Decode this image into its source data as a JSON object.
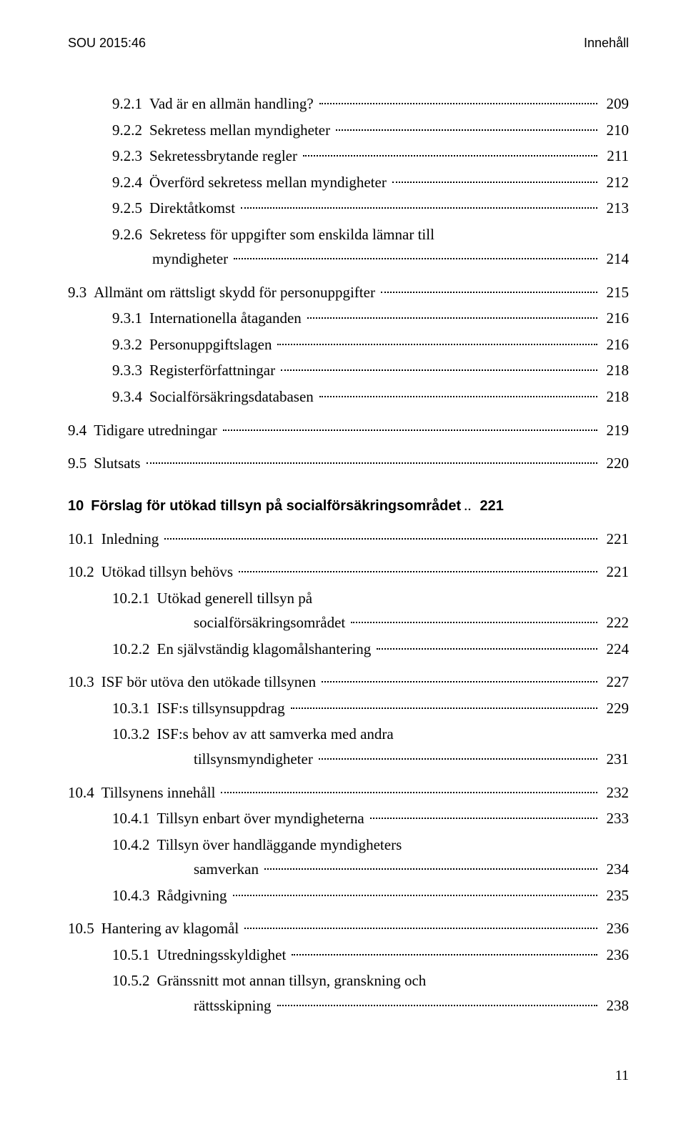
{
  "header": {
    "left": "SOU 2015:46",
    "right": "Innehåll"
  },
  "footer_page": "11",
  "toc": [
    {
      "key": "r0",
      "lvl": "lvl-2",
      "num": "9.2.1",
      "label": "Vad är en allmän handling?",
      "page": "209"
    },
    {
      "key": "r1",
      "lvl": "lvl-2",
      "num": "9.2.2",
      "label": "Sekretess mellan myndigheter",
      "page": "210"
    },
    {
      "key": "r2",
      "lvl": "lvl-2",
      "num": "9.2.3",
      "label": "Sekretessbrytande regler",
      "page": "211"
    },
    {
      "key": "r3",
      "lvl": "lvl-2",
      "num": "9.2.4",
      "label": "Överförd sekretess mellan myndigheter",
      "page": "212"
    },
    {
      "key": "r4",
      "lvl": "lvl-2",
      "num": "9.2.5",
      "label": "Direktåtkomst",
      "page": "213"
    },
    {
      "key": "r5",
      "lvl": "lvl-2",
      "num": "9.2.6",
      "label": "Sekretess för uppgifter som enskilda lämnar till",
      "cont": true
    },
    {
      "key": "r5b",
      "lvl": "cont-2",
      "label": "myndigheter",
      "page": "214",
      "wrap": true
    },
    {
      "key": "r6",
      "lvl": "lvl-1",
      "gap": "group-gap",
      "num": "9.3",
      "label": "Allmänt om rättsligt skydd för personuppgifter",
      "page": "215"
    },
    {
      "key": "r7",
      "lvl": "lvl-2",
      "num": "9.3.1",
      "label": "Internationella åtaganden",
      "page": "216"
    },
    {
      "key": "r8",
      "lvl": "lvl-2",
      "num": "9.3.2",
      "label": "Personuppgiftslagen",
      "page": "216"
    },
    {
      "key": "r9",
      "lvl": "lvl-2",
      "num": "9.3.3",
      "label": "Registerförfattningar",
      "page": "218"
    },
    {
      "key": "r10",
      "lvl": "lvl-2",
      "num": "9.3.4",
      "label": "Socialförsäkringsdatabasen",
      "page": "218"
    },
    {
      "key": "r11",
      "lvl": "lvl-1",
      "gap": "group-gap",
      "num": "9.4",
      "label": "Tidigare utredningar",
      "page": "219"
    },
    {
      "key": "r12",
      "lvl": "lvl-1",
      "gap": "group-gap",
      "num": "9.5",
      "label": "Slutsats",
      "page": "220"
    },
    {
      "key": "r13",
      "lvl": "lvl-1",
      "gap": "section-gap",
      "bold": true,
      "num": "10",
      "label": "Förslag för utökad tillsyn på socialförsäkringsområdet",
      "page": "221",
      "nodots": true,
      "sep": ".."
    },
    {
      "key": "r14",
      "lvl": "lvl-1",
      "gap": "group-gap",
      "num": "10.1",
      "label": "Inledning",
      "page": "221"
    },
    {
      "key": "r15",
      "lvl": "lvl-1",
      "gap": "group-gap",
      "num": "10.2",
      "label": "Utökad tillsyn behövs",
      "page": "221"
    },
    {
      "key": "r16",
      "lvl": "lvl-2",
      "num": "10.2.1",
      "label": "Utökad generell tillsyn på",
      "cont": true
    },
    {
      "key": "r16b",
      "lvl": "cont-3",
      "label": "socialförsäkringsområdet",
      "page": "222",
      "wrap": true
    },
    {
      "key": "r17",
      "lvl": "lvl-2",
      "num": "10.2.2",
      "label": "En självständig klagomålshantering",
      "page": "224"
    },
    {
      "key": "r18",
      "lvl": "lvl-1",
      "gap": "group-gap",
      "num": "10.3",
      "label": "ISF bör utöva den utökade tillsynen",
      "page": "227"
    },
    {
      "key": "r19",
      "lvl": "lvl-2",
      "num": "10.3.1",
      "label": "ISF:s tillsynsuppdrag",
      "page": "229"
    },
    {
      "key": "r20",
      "lvl": "lvl-2",
      "num": "10.3.2",
      "label": "ISF:s behov av att samverka med andra",
      "cont": true
    },
    {
      "key": "r20b",
      "lvl": "cont-3",
      "label": "tillsynsmyndigheter",
      "page": "231",
      "wrap": true
    },
    {
      "key": "r21",
      "lvl": "lvl-1",
      "gap": "group-gap",
      "num": "10.4",
      "label": "Tillsynens innehåll",
      "page": "232"
    },
    {
      "key": "r22",
      "lvl": "lvl-2",
      "num": "10.4.1",
      "label": "Tillsyn enbart över myndigheterna",
      "page": "233"
    },
    {
      "key": "r23",
      "lvl": "lvl-2",
      "num": "10.4.2",
      "label": "Tillsyn över handläggande myndigheters",
      "cont": true
    },
    {
      "key": "r23b",
      "lvl": "cont-3",
      "label": "samverkan",
      "page": "234",
      "wrap": true
    },
    {
      "key": "r24",
      "lvl": "lvl-2",
      "num": "10.4.3",
      "label": "Rådgivning",
      "page": "235"
    },
    {
      "key": "r25",
      "lvl": "lvl-1",
      "gap": "group-gap",
      "num": "10.5",
      "label": "Hantering av klagomål",
      "page": "236"
    },
    {
      "key": "r26",
      "lvl": "lvl-2",
      "num": "10.5.1",
      "label": "Utredningsskyldighet",
      "page": "236"
    },
    {
      "key": "r27",
      "lvl": "lvl-2",
      "num": "10.5.2",
      "label": "Gränssnitt mot annan tillsyn, granskning och",
      "cont": true
    },
    {
      "key": "r27b",
      "lvl": "cont-3",
      "label": "rättsskipning",
      "page": "238",
      "wrap": true
    }
  ]
}
